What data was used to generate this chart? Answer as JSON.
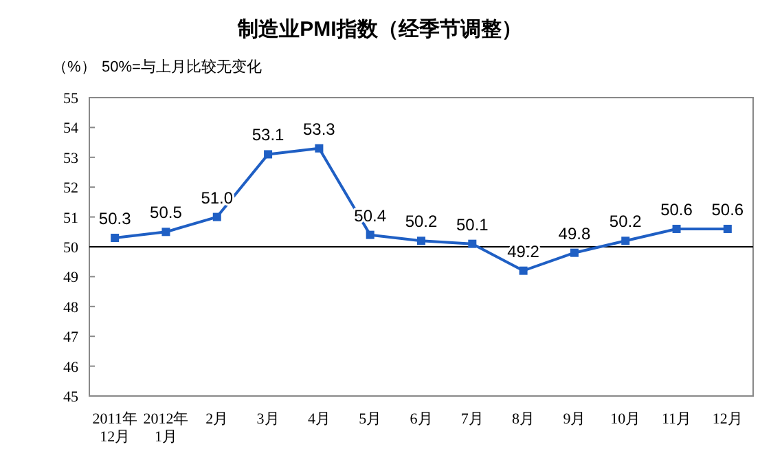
{
  "chart_data": {
    "type": "line",
    "title": "制造业PMI指数（经季节调整）",
    "ylabel": "（%）",
    "annotations": [
      "50%=与上月比较无变化"
    ],
    "categories": [
      "2011年\n12月",
      "2012年\n1月",
      "2月",
      "3月",
      "4月",
      "5月",
      "6月",
      "7月",
      "8月",
      "9月",
      "10月",
      "11月",
      "12月"
    ],
    "series": [
      {
        "color": "#1f5fc4",
        "values": [
          50.3,
          50.5,
          51.0,
          53.1,
          53.3,
          50.4,
          50.2,
          50.1,
          49.2,
          49.8,
          50.2,
          50.6,
          50.6
        ],
        "value_labels": [
          "50.3",
          "50.5",
          "51.0",
          "53.1",
          "53.3",
          "50.4",
          "50.2",
          "50.1",
          "49.2",
          "49.8",
          "50.2",
          "50.6",
          "50.6"
        ]
      }
    ],
    "ylim": [
      45,
      55
    ],
    "yticks": [
      45,
      46,
      47,
      48,
      49,
      50,
      51,
      52,
      53,
      54,
      55
    ],
    "ref_lines": [
      {
        "axis": "y",
        "value": 50,
        "color": "#000000"
      }
    ],
    "marker": "square",
    "line_style": "solid"
  }
}
